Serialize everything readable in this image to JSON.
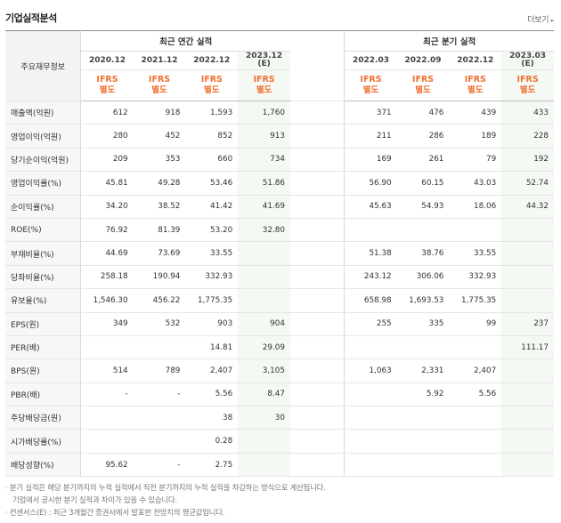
{
  "section_title": "기업실적분석",
  "more_link": "더보기",
  "header": {
    "category_label": "주요재무정보",
    "annual_group": "최근 연간 실적",
    "quarterly_group": "최근 분기 실적",
    "annual_periods": [
      {
        "label": "2020.12",
        "est": "",
        "basis": "IFRS",
        "scope": "별도"
      },
      {
        "label": "2021.12",
        "est": "",
        "basis": "IFRS",
        "scope": "별도"
      },
      {
        "label": "2022.12",
        "est": "",
        "basis": "IFRS",
        "scope": "별도"
      },
      {
        "label": "2023.12",
        "est": "(E)",
        "basis": "IFRS",
        "scope": "별도"
      }
    ],
    "quarterly_periods": [
      {
        "label": "2022.03",
        "est": "",
        "basis": "IFRS",
        "scope": "별도"
      },
      {
        "label": "2022.09",
        "est": "",
        "basis": "IFRS",
        "scope": "별도"
      },
      {
        "label": "2022.12",
        "est": "",
        "basis": "IFRS",
        "scope": "별도"
      },
      {
        "label": "2023.03",
        "est": "(E)",
        "basis": "IFRS",
        "scope": "별도"
      }
    ]
  },
  "rows": [
    {
      "label": "매출액(억원)",
      "annual": [
        "612",
        "918",
        "1,593",
        "1,760"
      ],
      "quarterly": [
        "371",
        "476",
        "439",
        "433"
      ]
    },
    {
      "label": "영업이익(억원)",
      "annual": [
        "280",
        "452",
        "852",
        "913"
      ],
      "quarterly": [
        "211",
        "286",
        "189",
        "228"
      ]
    },
    {
      "label": "당기순이익(억원)",
      "annual": [
        "209",
        "353",
        "660",
        "734"
      ],
      "quarterly": [
        "169",
        "261",
        "79",
        "192"
      ]
    },
    {
      "label": "영업이익률(%)",
      "annual": [
        "45.81",
        "49.28",
        "53.46",
        "51.86"
      ],
      "quarterly": [
        "56.90",
        "60.15",
        "43.03",
        "52.74"
      ]
    },
    {
      "label": "순이익률(%)",
      "annual": [
        "34.20",
        "38.52",
        "41.42",
        "41.69"
      ],
      "quarterly": [
        "45.63",
        "54.93",
        "18.06",
        "44.32"
      ]
    },
    {
      "label": "ROE(%)",
      "annual": [
        "76.92",
        "81.39",
        "53.20",
        "32.80"
      ],
      "quarterly": [
        "",
        "",
        "",
        ""
      ]
    },
    {
      "label": "부채비율(%)",
      "annual": [
        "44.69",
        "73.69",
        "33.55",
        ""
      ],
      "quarterly": [
        "51.38",
        "38.76",
        "33.55",
        ""
      ]
    },
    {
      "label": "당좌비율(%)",
      "annual": [
        "258.18",
        "190.94",
        "332.93",
        ""
      ],
      "quarterly": [
        "243.12",
        "306.06",
        "332.93",
        ""
      ]
    },
    {
      "label": "유보율(%)",
      "annual": [
        "1,546.30",
        "456.22",
        "1,775.35",
        ""
      ],
      "quarterly": [
        "658.98",
        "1,693.53",
        "1,775.35",
        ""
      ]
    },
    {
      "label": "EPS(원)",
      "annual": [
        "349",
        "532",
        "903",
        "904"
      ],
      "quarterly": [
        "255",
        "335",
        "99",
        "237"
      ]
    },
    {
      "label": "PER(배)",
      "annual": [
        "",
        "",
        "14.81",
        "29.09"
      ],
      "quarterly": [
        "",
        "",
        "",
        "111.17"
      ]
    },
    {
      "label": "BPS(원)",
      "annual": [
        "514",
        "789",
        "2,407",
        "3,105"
      ],
      "quarterly": [
        "1,063",
        "2,331",
        "2,407",
        ""
      ]
    },
    {
      "label": "PBR(배)",
      "annual": [
        "-",
        "-",
        "5.56",
        "8.47"
      ],
      "quarterly": [
        "",
        "5.92",
        "5.56",
        ""
      ]
    },
    {
      "label": "주당배당금(원)",
      "annual": [
        "",
        "",
        "38",
        "30"
      ],
      "quarterly": [
        "",
        "",
        "",
        ""
      ]
    },
    {
      "label": "시가배당률(%)",
      "annual": [
        "",
        "",
        "0.28",
        ""
      ],
      "quarterly": [
        "",
        "",
        "",
        ""
      ]
    },
    {
      "label": "배당성향(%)",
      "annual": [
        "95.62",
        "-",
        "2.75",
        ""
      ],
      "quarterly": [
        "",
        "",
        "",
        ""
      ]
    }
  ],
  "group_starts": [
    3,
    6,
    9,
    13
  ],
  "notes": [
    "· 분기 실적은 해당 분기까지의 누적 실적에서 직전 분기까지의 누적 실적을 차감하는 방식으로 계산됩니다.",
    "  기업에서 공시한 분기 실적과 차이가 있을 수 있습니다.",
    "· 컨센서스(E) : 최근 3개월간 증권사에서 발표한 전망치의 평균값입니다."
  ]
}
